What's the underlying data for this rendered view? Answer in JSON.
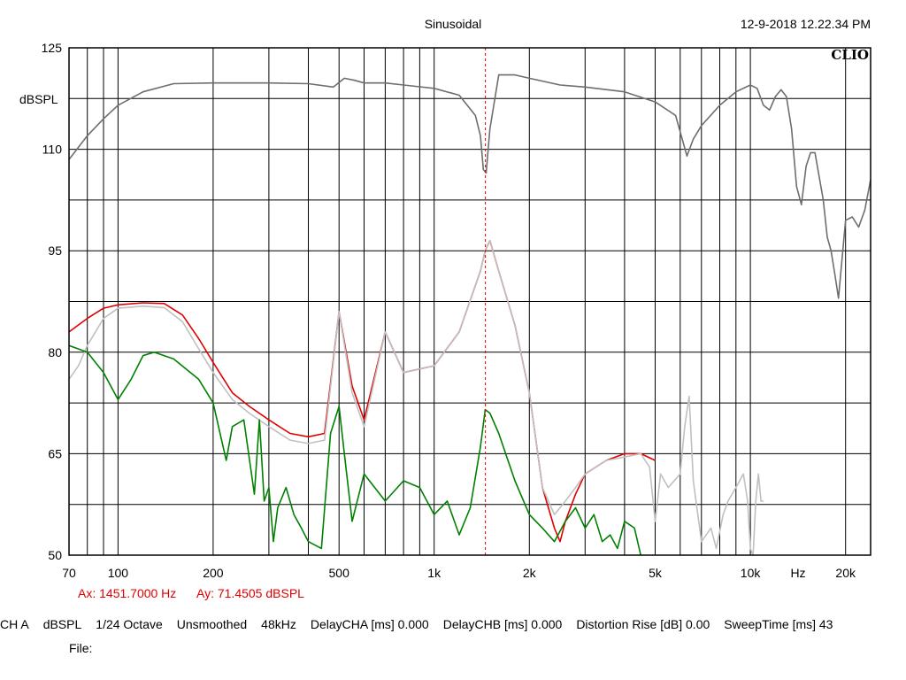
{
  "chart_data": {
    "type": "line",
    "title": "Sinusoidal",
    "timestamp": "12-9-2018 12.22.34 PM",
    "logo_text": "CLIO",
    "ylabel": "dBSPL",
    "xlabel": "Hz",
    "xscale": "log",
    "xlim": [
      70,
      24000
    ],
    "ylim": [
      50,
      125
    ],
    "yticks": [
      50,
      65,
      80,
      95,
      110,
      125
    ],
    "ytick_labels": [
      "50",
      "65",
      "80",
      "95",
      "110",
      "125"
    ],
    "xticks": [
      70,
      100,
      200,
      500,
      1000,
      2000,
      5000,
      10000,
      20000
    ],
    "xtick_labels": [
      "70",
      "100",
      "200",
      "500",
      "1k",
      "2k",
      "5k",
      "10k",
      "20k"
    ],
    "grid": true,
    "cursor": {
      "x": 1451.7,
      "readout_x": "Ax: 1451.7000 Hz",
      "readout_y": "Ay: 71.4505 dBSPL",
      "color": "#e00000"
    },
    "series": [
      {
        "color": "#6e6e6e",
        "x": [
          70,
          80,
          90,
          100,
          120,
          150,
          200,
          300,
          400,
          480,
          520,
          560,
          600,
          700,
          800,
          1000,
          1200,
          1350,
          1400,
          1430,
          1460,
          1500,
          1600,
          1800,
          2000,
          2500,
          3000,
          4000,
          5000,
          5800,
          6300,
          6600,
          7000,
          8000,
          9000,
          10000,
          10500,
          11000,
          11500,
          12000,
          12500,
          13000,
          13500,
          14000,
          14500,
          15000,
          15500,
          16000,
          17000,
          17500,
          18000,
          18500,
          19000,
          20000,
          21000,
          22000,
          23000,
          24000
        ],
        "y": [
          108.5,
          112,
          114.5,
          116.5,
          118.5,
          119.7,
          119.8,
          119.8,
          119.7,
          119.2,
          120.5,
          120.2,
          119.8,
          119.8,
          119.5,
          119.0,
          118.0,
          115.0,
          112.0,
          107.0,
          106.5,
          113.0,
          121.0,
          121.0,
          120.5,
          119.5,
          119.2,
          118.5,
          117.0,
          115.0,
          109.0,
          111.5,
          113.5,
          116.5,
          118.5,
          119.5,
          119.0,
          116.5,
          115.8,
          117.8,
          118.8,
          117.8,
          113.0,
          104.5,
          101.8,
          107.5,
          109.5,
          109.5,
          102.5,
          97.0,
          95.0,
          91.5,
          88.0,
          99.5,
          100.0,
          98.5,
          101.0,
          105.5
        ]
      },
      {
        "color": "#e00000",
        "x": [
          70,
          80,
          90,
          100,
          120,
          140,
          160,
          180,
          200,
          230,
          260,
          300,
          350,
          400,
          450,
          500,
          550,
          600,
          700,
          800,
          1000,
          1200,
          1400,
          1450,
          1500,
          1600,
          1800,
          2000,
          2200,
          2400,
          2500,
          2600,
          2800,
          3000,
          3500,
          4000,
          4500,
          5000
        ],
        "y": [
          83,
          85,
          86.5,
          87,
          87.3,
          87.2,
          85.5,
          82,
          78.5,
          74,
          72,
          70,
          68,
          67.5,
          68,
          86,
          75,
          70,
          83,
          77,
          78,
          83,
          92,
          95,
          96.5,
          92,
          84,
          74,
          60,
          54,
          52,
          55,
          59,
          62,
          64,
          65,
          65,
          64
        ]
      },
      {
        "color": "#c0c0c0",
        "x": [
          70,
          75,
          80,
          90,
          100,
          120,
          140,
          160,
          180,
          200,
          230,
          260,
          300,
          350,
          400,
          450,
          500,
          550,
          600,
          700,
          800,
          1000,
          1200,
          1400,
          1450,
          1500,
          1600,
          1800,
          2000,
          2200,
          2400,
          2600,
          2800,
          3000,
          3500,
          4000,
          4500,
          4800,
          5000,
          5200,
          5500,
          6000,
          6200,
          6400,
          6600,
          7000,
          7500,
          7800,
          8200,
          8500,
          9000,
          9500,
          9800,
          10000,
          10200,
          10400,
          10600,
          10800,
          11000
        ],
        "y": [
          76,
          78,
          81,
          85,
          86.5,
          86.8,
          86.6,
          84.5,
          80.5,
          77,
          73,
          71,
          69,
          67,
          66.5,
          67,
          86,
          74,
          69,
          83,
          77,
          78,
          83,
          92,
          95,
          96.5,
          92,
          84,
          74,
          60,
          56,
          58,
          60,
          62,
          64,
          64.5,
          65,
          63,
          55,
          62,
          60,
          62,
          69,
          73.5,
          61,
          52,
          54,
          51,
          56,
          58,
          60,
          62,
          58,
          51,
          50,
          58,
          62,
          58,
          58
        ]
      },
      {
        "color": "#008000",
        "x": [
          70,
          80,
          90,
          100,
          110,
          120,
          130,
          150,
          180,
          200,
          220,
          230,
          250,
          270,
          280,
          290,
          300,
          310,
          320,
          340,
          360,
          380,
          400,
          440,
          470,
          500,
          520,
          550,
          600,
          700,
          800,
          900,
          1000,
          1100,
          1200,
          1300,
          1400,
          1450,
          1500,
          1600,
          1800,
          2000,
          2200,
          2400,
          2600,
          2800,
          3000,
          3200,
          3400,
          3600,
          3800,
          4000,
          4300,
          4500
        ],
        "y": [
          81,
          80,
          77,
          73,
          76,
          79.5,
          80,
          79,
          76,
          72.5,
          64,
          69,
          70,
          59,
          70,
          58,
          60,
          52,
          57,
          60,
          56,
          54,
          52,
          51,
          68,
          72,
          65,
          55,
          62,
          58,
          61,
          60,
          56,
          58,
          53,
          57,
          66,
          71.5,
          71,
          68,
          61,
          56,
          54,
          52,
          55,
          57,
          54,
          56,
          52,
          53,
          51,
          55,
          54,
          50
        ]
      }
    ]
  },
  "status_bar": {
    "items": [
      "CH A",
      "dBSPL",
      "1/24 Octave",
      "Unsmoothed",
      "48kHz",
      "DelayCHA [ms] 0.000",
      "DelayCHB [ms] 0.000",
      "Distortion Rise [dB] 0.00",
      "SweepTime [ms] 43"
    ],
    "file_label": "File:"
  }
}
